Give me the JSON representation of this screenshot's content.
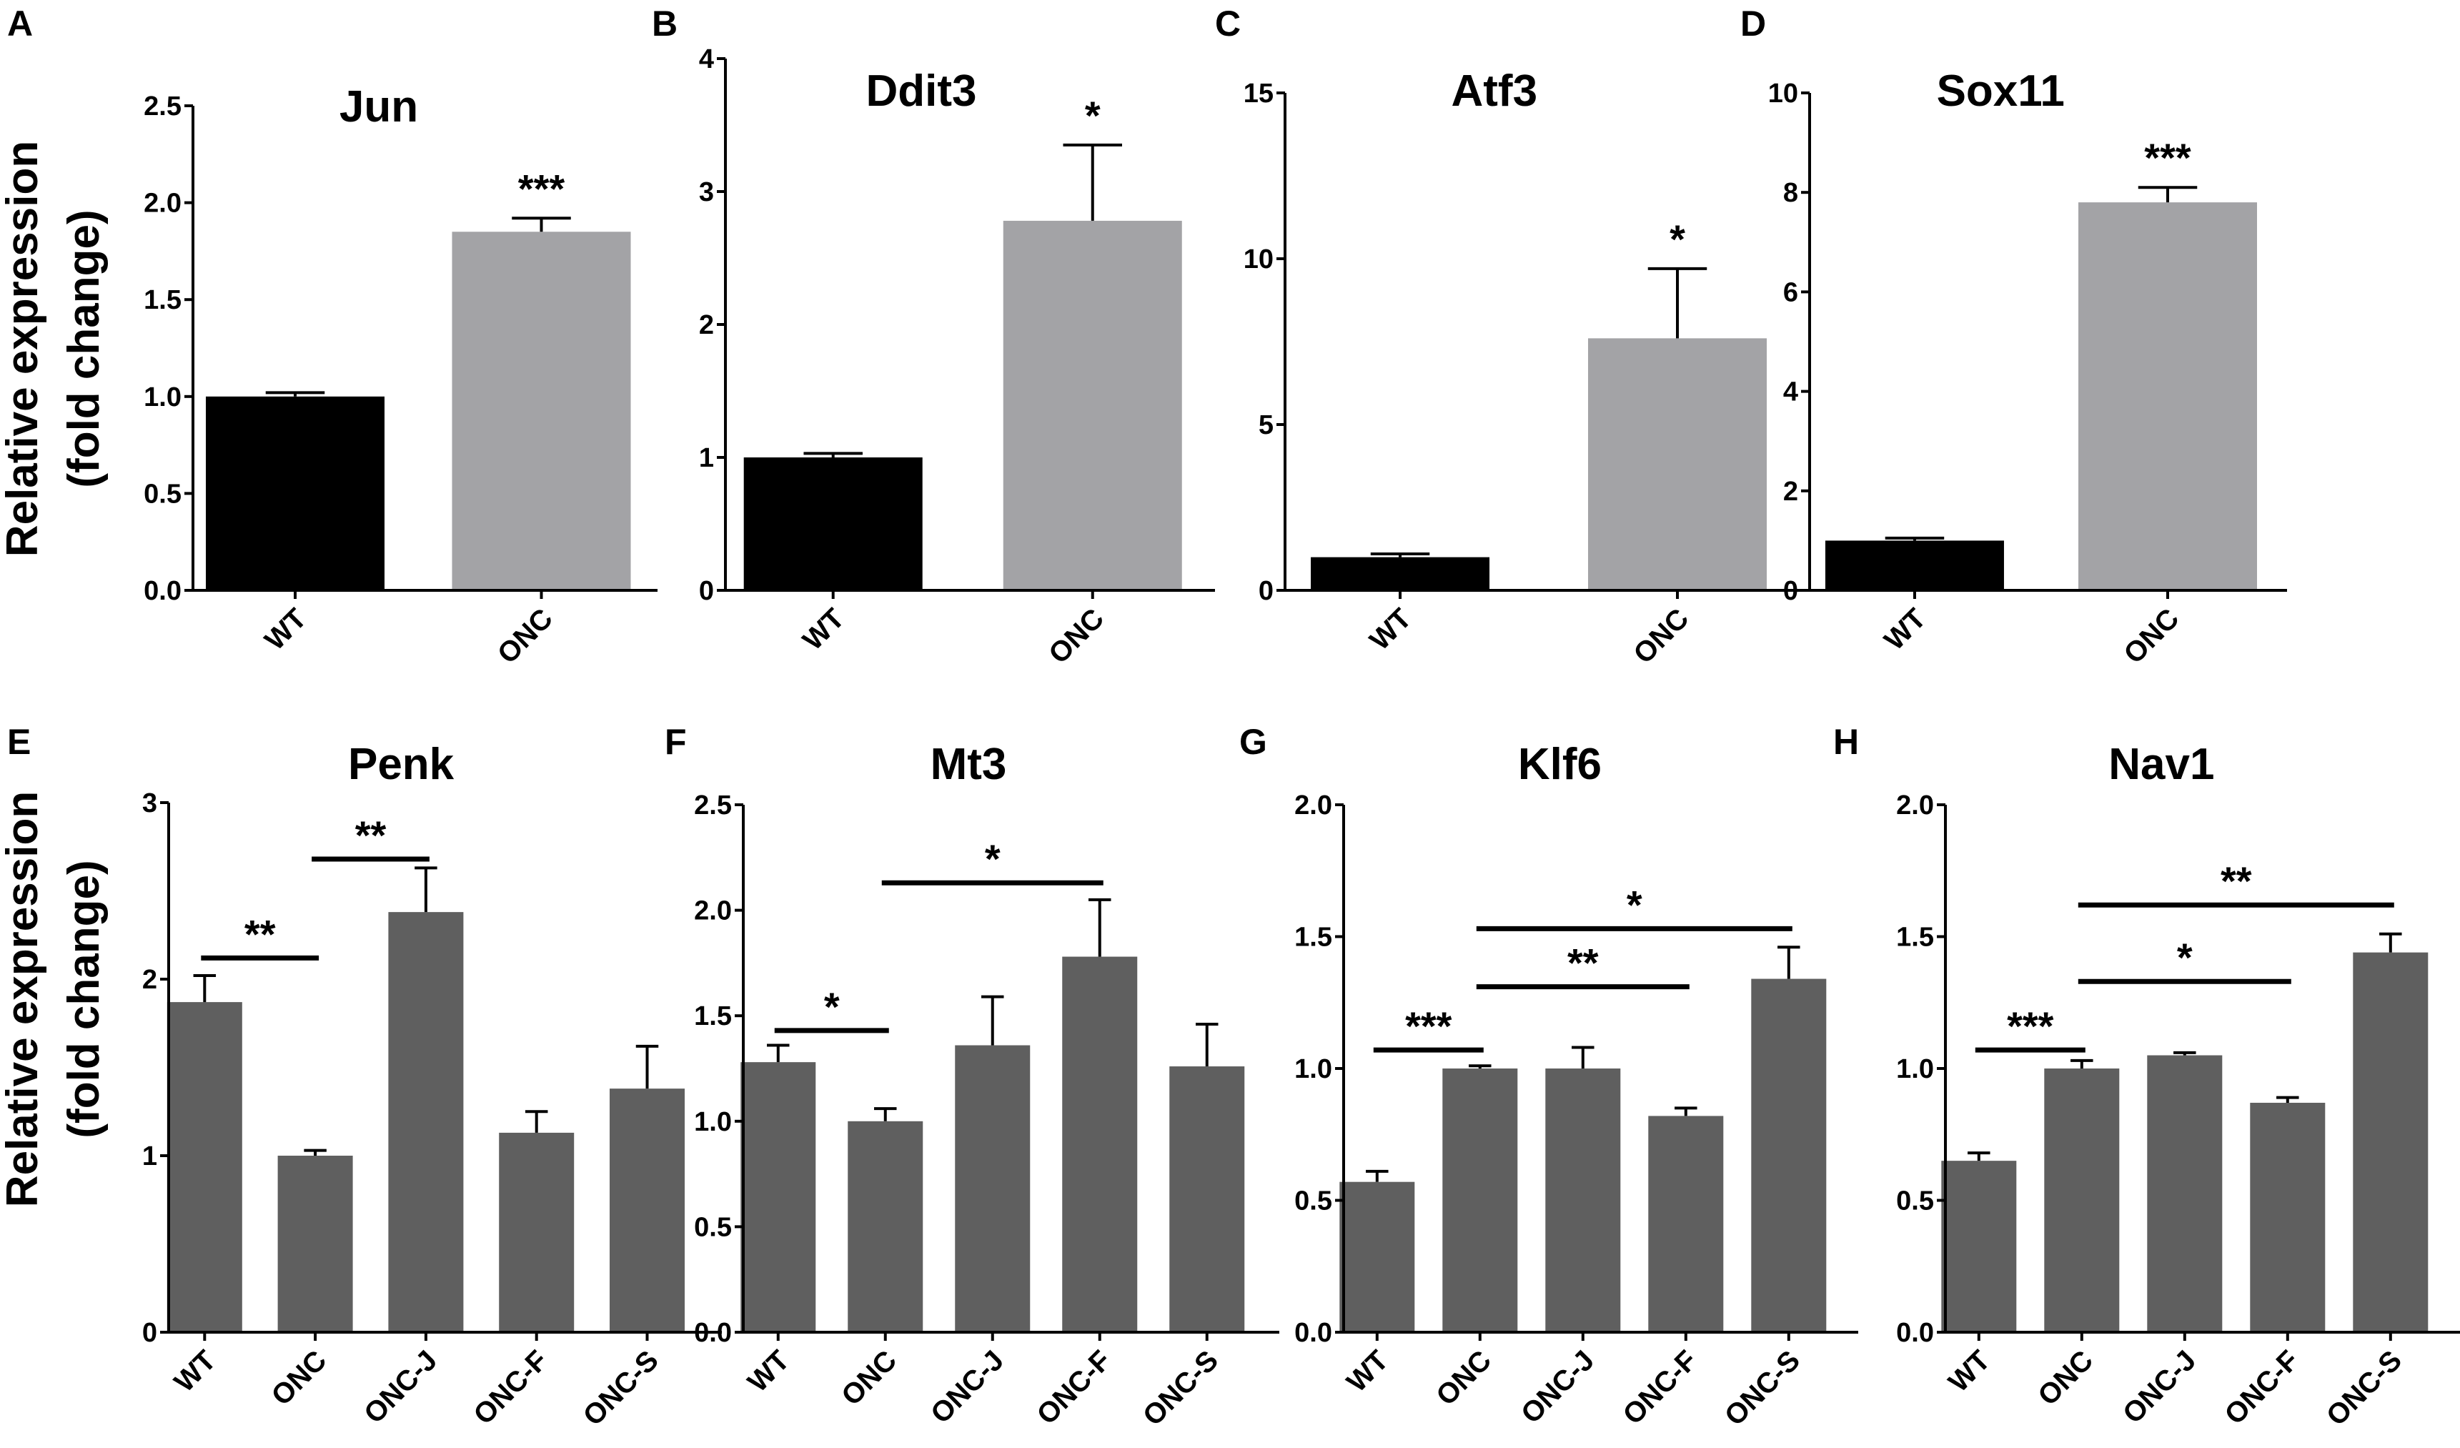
{
  "y_axis_label_line1": "Relative expression",
  "y_axis_label_line2": "(fold change)",
  "colors": {
    "black_bar": "#000000",
    "light_gray_bar": "#a3a3a6",
    "dark_gray_bar": "#5f5f5f"
  },
  "chart_data": [
    {
      "type": "bar",
      "panel": "A",
      "title": "Jun",
      "categories": [
        "WT",
        "ONC"
      ],
      "values": [
        1.0,
        1.85
      ],
      "errors": [
        0.02,
        0.07
      ],
      "bar_colors": [
        "black_bar",
        "light_gray_bar"
      ],
      "ylim": [
        0,
        2.5
      ],
      "yticks": [
        "0.0",
        "0.5",
        "1.0",
        "1.5",
        "2.0",
        "2.5"
      ],
      "annotations": [
        {
          "bar": 1,
          "text": "***"
        }
      ],
      "brackets": []
    },
    {
      "type": "bar",
      "panel": "B",
      "title": "Ddit3",
      "categories": [
        "WT",
        "ONC"
      ],
      "values": [
        1.0,
        2.78
      ],
      "errors": [
        0.03,
        0.57
      ],
      "bar_colors": [
        "black_bar",
        "light_gray_bar"
      ],
      "ylim": [
        0,
        4
      ],
      "yticks": [
        "0",
        "1",
        "2",
        "3",
        "4"
      ],
      "annotations": [
        {
          "bar": 1,
          "text": "*"
        }
      ],
      "brackets": []
    },
    {
      "type": "bar",
      "panel": "C",
      "title": "Atf3",
      "categories": [
        "WT",
        "ONC"
      ],
      "values": [
        1.0,
        7.6
      ],
      "errors": [
        0.1,
        2.1
      ],
      "bar_colors": [
        "black_bar",
        "light_gray_bar"
      ],
      "ylim": [
        0,
        15
      ],
      "yticks": [
        "0",
        "5",
        "10",
        "15"
      ],
      "annotations": [
        {
          "bar": 1,
          "text": "*"
        }
      ],
      "brackets": []
    },
    {
      "type": "bar",
      "panel": "D",
      "title": "Sox11",
      "categories": [
        "WT",
        "ONC"
      ],
      "values": [
        1.0,
        7.8
      ],
      "errors": [
        0.05,
        0.3
      ],
      "bar_colors": [
        "black_bar",
        "light_gray_bar"
      ],
      "ylim": [
        0,
        10
      ],
      "yticks": [
        "0",
        "2",
        "4",
        "6",
        "8",
        "10"
      ],
      "annotations": [
        {
          "bar": 1,
          "text": "***"
        }
      ],
      "brackets": []
    },
    {
      "type": "bar",
      "panel": "E",
      "title": "Penk",
      "categories": [
        "WT",
        "ONC",
        "ONC-J",
        "ONC-F",
        "ONC-S"
      ],
      "values": [
        1.87,
        1.0,
        2.38,
        1.13,
        1.38
      ],
      "errors": [
        0.15,
        0.03,
        0.25,
        0.12,
        0.24
      ],
      "bar_colors": [
        "dark_gray_bar",
        "dark_gray_bar",
        "dark_gray_bar",
        "dark_gray_bar",
        "dark_gray_bar"
      ],
      "ylim": [
        0,
        3
      ],
      "yticks": [
        "0",
        "1",
        "2",
        "3"
      ],
      "annotations": [],
      "brackets": [
        {
          "from": 0,
          "to": 1,
          "y": 2.12,
          "text": "**"
        },
        {
          "from": 1,
          "to": 2,
          "y": 2.68,
          "text": "**"
        }
      ]
    },
    {
      "type": "bar",
      "panel": "F",
      "title": "Mt3",
      "categories": [
        "WT",
        "ONC",
        "ONC-J",
        "ONC-F",
        "ONC-S"
      ],
      "values": [
        1.28,
        1.0,
        1.36,
        1.78,
        1.26
      ],
      "errors": [
        0.08,
        0.06,
        0.23,
        0.27,
        0.2
      ],
      "bar_colors": [
        "dark_gray_bar",
        "dark_gray_bar",
        "dark_gray_bar",
        "dark_gray_bar",
        "dark_gray_bar"
      ],
      "ylim": [
        0,
        2.5
      ],
      "yticks": [
        "0.0",
        "0.5",
        "1.0",
        "1.5",
        "2.0",
        "2.5"
      ],
      "annotations": [],
      "brackets": [
        {
          "from": 0,
          "to": 1,
          "y": 1.43,
          "text": "*"
        },
        {
          "from": 1,
          "to": 3,
          "y": 2.13,
          "text": "*"
        }
      ]
    },
    {
      "type": "bar",
      "panel": "G",
      "title": "Klf6",
      "categories": [
        "WT",
        "ONC",
        "ONC-J",
        "ONC-F",
        "ONC-S"
      ],
      "values": [
        0.57,
        1.0,
        1.0,
        0.82,
        1.34
      ],
      "errors": [
        0.04,
        0.01,
        0.08,
        0.03,
        0.12
      ],
      "bar_colors": [
        "dark_gray_bar",
        "dark_gray_bar",
        "dark_gray_bar",
        "dark_gray_bar",
        "dark_gray_bar"
      ],
      "ylim": [
        0,
        2.0
      ],
      "yticks": [
        "0.0",
        "0.5",
        "1.0",
        "1.5",
        "2.0"
      ],
      "annotations": [],
      "brackets": [
        {
          "from": 0,
          "to": 1,
          "y": 1.07,
          "text": "***"
        },
        {
          "from": 1,
          "to": 3,
          "y": 1.31,
          "text": "**"
        },
        {
          "from": 1,
          "to": 4,
          "y": 1.53,
          "text": "*"
        }
      ]
    },
    {
      "type": "bar",
      "panel": "H",
      "title": "Nav1",
      "categories": [
        "WT",
        "ONC",
        "ONC-J",
        "ONC-F",
        "ONC-S"
      ],
      "values": [
        0.65,
        1.0,
        1.05,
        0.87,
        1.44
      ],
      "errors": [
        0.03,
        0.03,
        0.01,
        0.02,
        0.07
      ],
      "bar_colors": [
        "dark_gray_bar",
        "dark_gray_bar",
        "dark_gray_bar",
        "dark_gray_bar",
        "dark_gray_bar"
      ],
      "ylim": [
        0,
        2.0
      ],
      "yticks": [
        "0.0",
        "0.5",
        "1.0",
        "1.5",
        "2.0"
      ],
      "annotations": [],
      "brackets": [
        {
          "from": 0,
          "to": 1,
          "y": 1.07,
          "text": "***"
        },
        {
          "from": 1,
          "to": 3,
          "y": 1.33,
          "text": "*"
        },
        {
          "from": 1,
          "to": 4,
          "y": 1.62,
          "text": "**"
        }
      ]
    }
  ]
}
